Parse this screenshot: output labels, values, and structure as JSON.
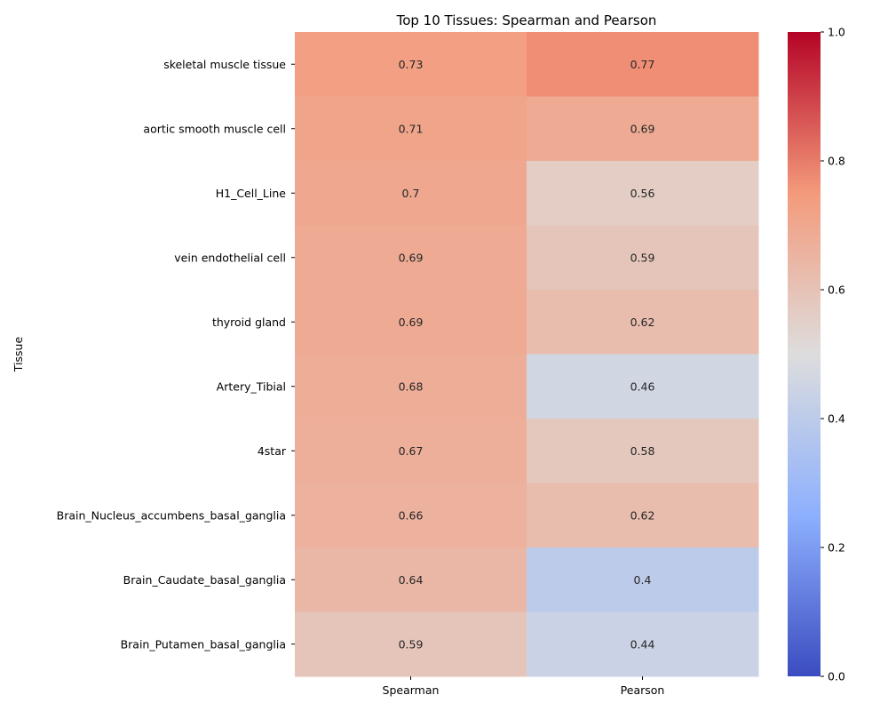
{
  "chart_data": {
    "type": "heatmap",
    "title": "Top 10 Tissues: Spearman and Pearson",
    "xlabel": "",
    "ylabel": "Tissue",
    "columns": [
      "Spearman",
      "Pearson"
    ],
    "rows": [
      "skeletal muscle tissue",
      "aortic smooth muscle cell",
      "H1_Cell_Line",
      "vein endothelial cell",
      "thyroid gland",
      "Artery_Tibial",
      "4star",
      "Brain_Nucleus_accumbens_basal_ganglia",
      "Brain_Caudate_basal_ganglia",
      "Brain_Putamen_basal_ganglia"
    ],
    "values": [
      [
        0.73,
        0.77
      ],
      [
        0.71,
        0.69
      ],
      [
        0.7,
        0.56
      ],
      [
        0.69,
        0.59
      ],
      [
        0.69,
        0.62
      ],
      [
        0.68,
        0.46
      ],
      [
        0.67,
        0.58
      ],
      [
        0.66,
        0.62
      ],
      [
        0.64,
        0.4
      ],
      [
        0.59,
        0.44
      ]
    ],
    "value_labels": [
      [
        "0.73",
        "0.77"
      ],
      [
        "0.71",
        "0.69"
      ],
      [
        "0.7",
        "0.56"
      ],
      [
        "0.69",
        "0.59"
      ],
      [
        "0.69",
        "0.62"
      ],
      [
        "0.68",
        "0.46"
      ],
      [
        "0.67",
        "0.58"
      ],
      [
        "0.66",
        "0.62"
      ],
      [
        "0.64",
        "0.4"
      ],
      [
        "0.59",
        "0.44"
      ]
    ],
    "colormap": "coolwarm",
    "vmin": 0,
    "vmax": 1,
    "colorbar_ticks": [
      "0.0",
      "0.2",
      "0.4",
      "0.6",
      "0.8",
      "1.0"
    ],
    "colorbar_stops": [
      "#3b4cc0",
      "#8db0fe",
      "#dddddd",
      "#f49a7b",
      "#b40426"
    ]
  }
}
